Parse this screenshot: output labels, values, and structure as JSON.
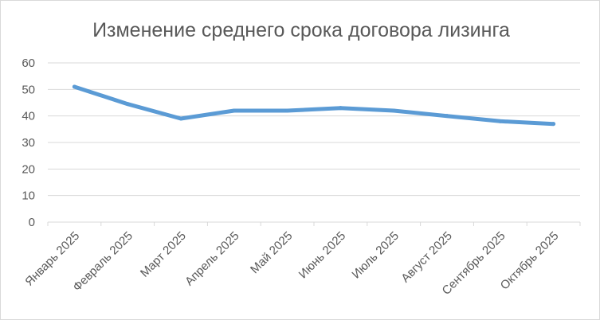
{
  "chart_data": {
    "type": "line",
    "title": "Изменение среднего срока договора лизинга",
    "xlabel": "",
    "ylabel": "",
    "categories": [
      "Январь 2025",
      "Февраль 2025",
      "Март 2025",
      "Апрель 2025",
      "Май 2025",
      "Июнь 2025",
      "Июль 2025",
      "Август 2025",
      "Сентябрь 2025",
      "Октябрь 2025"
    ],
    "series": [
      {
        "values": [
          51,
          44.5,
          39,
          42,
          42,
          43,
          42,
          40,
          38,
          37
        ],
        "color": "#5b9bd5"
      }
    ],
    "ylim": [
      0,
      60
    ],
    "yticks": [
      "0",
      "10",
      "20",
      "30",
      "40",
      "50",
      "60"
    ],
    "grid": true,
    "legend": "none"
  }
}
